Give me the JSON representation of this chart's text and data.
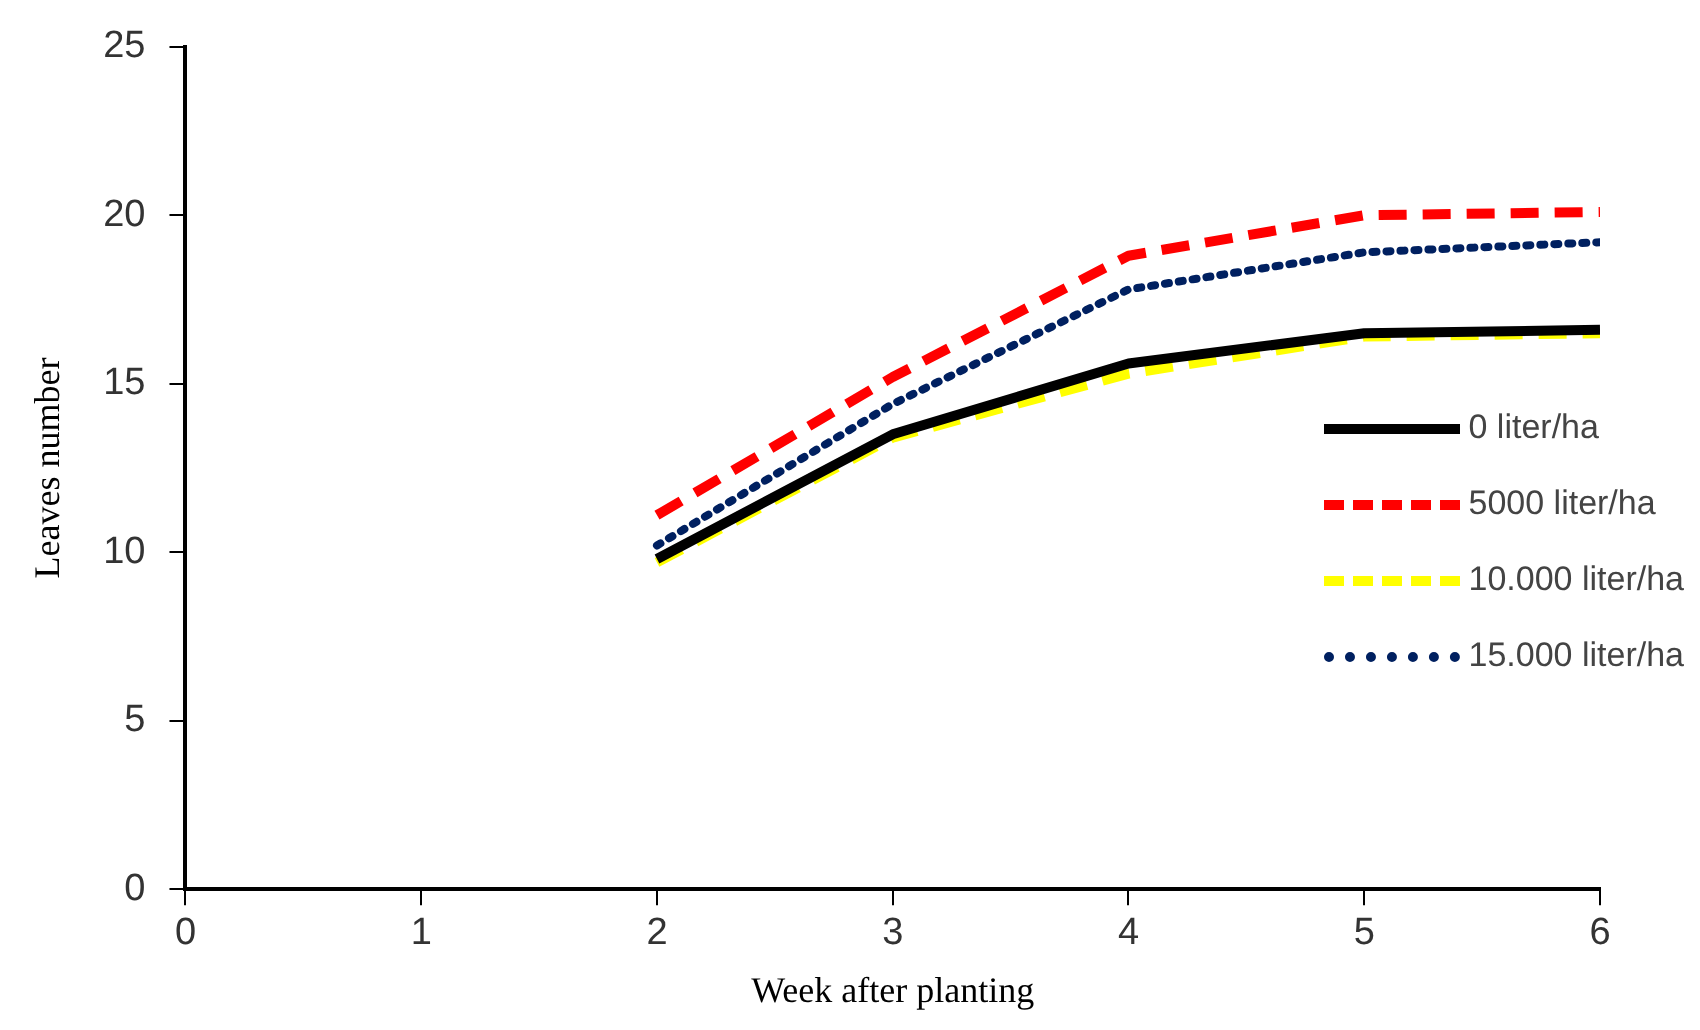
{
  "chart_data": {
    "type": "line",
    "xlabel": "Week after planting",
    "ylabel": "Leaves number",
    "x": [
      2,
      3,
      4,
      5,
      6
    ],
    "xlim": [
      0,
      6
    ],
    "xticks": [
      0,
      1,
      2,
      3,
      4,
      5,
      6
    ],
    "ylim": [
      0,
      25
    ],
    "yticks": [
      0,
      5,
      10,
      15,
      20,
      25
    ],
    "grid": false,
    "legend": "right",
    "marker": "none",
    "series": [
      {
        "name": "0 liter/ha",
        "color": "#000000",
        "line_style": "solid",
        "values": [
          9.8,
          13.5,
          15.6,
          16.5,
          16.6
        ]
      },
      {
        "name": "5000 liter/ha",
        "color": "#ff0000",
        "line_style": "dashed",
        "values": [
          11.1,
          15.2,
          18.8,
          20.0,
          20.1
        ]
      },
      {
        "name": "10.000 liter/ha",
        "color": "#ffff00",
        "line_style": "dashed",
        "values": [
          9.7,
          13.4,
          15.3,
          16.4,
          16.5
        ]
      },
      {
        "name": "15.000 liter/ha",
        "color": "#002060",
        "line_style": "dotted",
        "values": [
          10.2,
          14.4,
          17.8,
          18.9,
          19.2
        ]
      }
    ]
  }
}
